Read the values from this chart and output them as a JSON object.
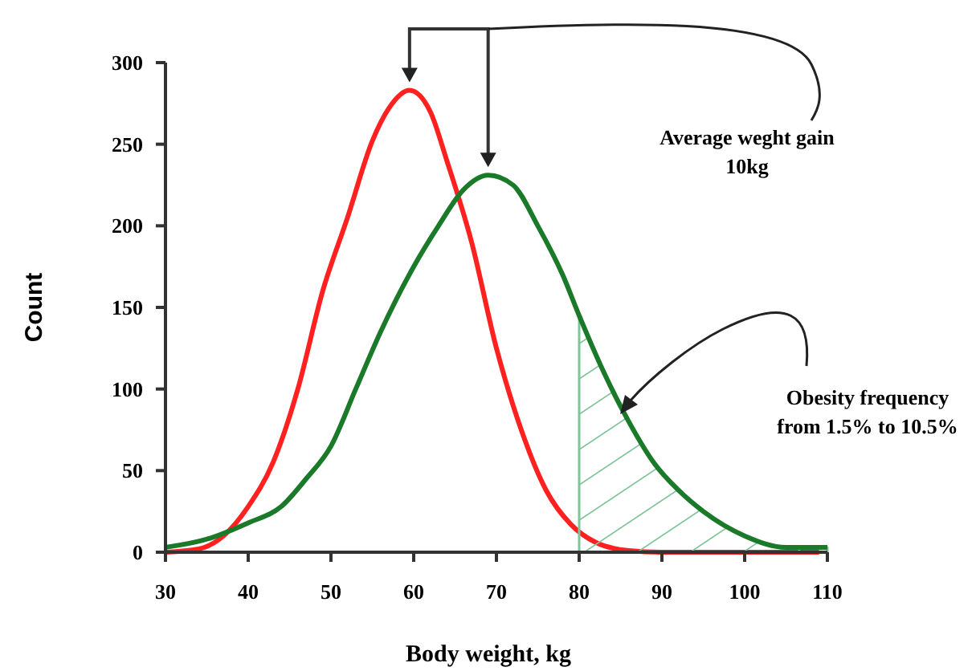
{
  "chart_data": {
    "type": "line",
    "xlabel": "Body weight, kg",
    "ylabel": "Count",
    "xlim": [
      30,
      110
    ],
    "xticks": [
      30,
      40,
      50,
      60,
      70,
      80,
      90,
      100,
      110
    ],
    "ylim": [
      0,
      300
    ],
    "yticks": [
      0,
      50,
      100,
      150,
      200,
      250,
      300
    ],
    "marker": "none",
    "line_style": "solid",
    "series": [
      {
        "color": "#ff2020",
        "x": [
          30,
          34,
          37,
          40,
          43,
          46,
          49,
          52,
          55,
          57,
          59.5,
          62,
          64,
          67,
          70,
          73,
          76,
          79,
          82,
          86,
          90,
          100,
          109
        ],
        "values": [
          0,
          2,
          10,
          28,
          55,
          100,
          160,
          205,
          252,
          272,
          283,
          270,
          240,
          190,
          125,
          75,
          38,
          17,
          6,
          1,
          0,
          0,
          0
        ]
      },
      {
        "type": "area",
        "color": "#7fc49a",
        "x": [
          80,
          83,
          86,
          89,
          92,
          95,
          100,
          105,
          110
        ],
        "values": [
          145,
          110,
          80,
          55,
          38,
          25,
          10,
          3,
          3
        ]
      },
      {
        "color": "#1a7a2a",
        "x": [
          30,
          35,
          40,
          44,
          47,
          50,
          53,
          56,
          60,
          63,
          66,
          69,
          72,
          75,
          78,
          80,
          83,
          86,
          89,
          92,
          95,
          100,
          105,
          110
        ],
        "values": [
          3,
          8,
          18,
          28,
          45,
          65,
          100,
          135,
          175,
          200,
          222,
          231,
          225,
          200,
          170,
          145,
          110,
          80,
          55,
          38,
          25,
          10,
          3,
          3
        ]
      }
    ],
    "annotations": [
      "Average weght gain\n10kg",
      "Obesity frequency\nfrom 1.5% to 10.5%"
    ]
  }
}
